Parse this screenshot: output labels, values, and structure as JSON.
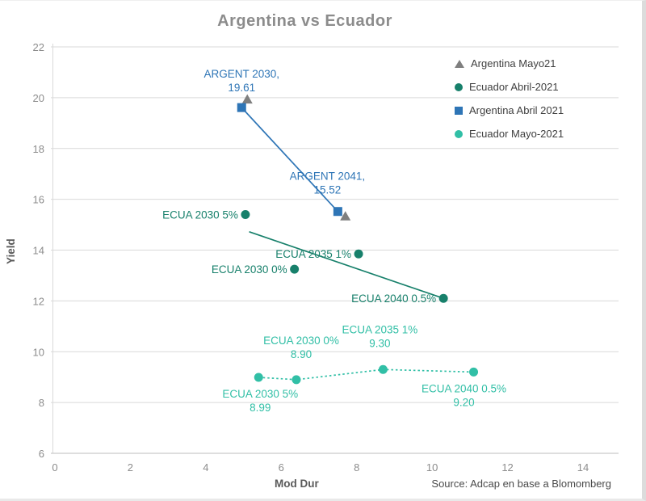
{
  "title": "Argentina vs Ecuador",
  "axes": {
    "y_label": "Yield",
    "x_label": "Mod Dur",
    "source": "Source: Adcap en base a Blomomberg"
  },
  "legend": {
    "position": "top-right",
    "items": [
      {
        "label": "Argentina Mayo21",
        "marker": "triangle",
        "color": "#7f7f7f"
      },
      {
        "label": "Ecuador Abril-2021",
        "marker": "circle",
        "color": "#17806b"
      },
      {
        "label": "Argentina Abril 2021",
        "marker": "square",
        "color": "#2e75b6"
      },
      {
        "label": "Ecuador Mayo-2021",
        "marker": "circle",
        "color": "#31bfa6"
      }
    ]
  },
  "colors": {
    "grid": "#d9d9d9",
    "axis": "#c9c9c9",
    "ticks": "#8c8c8c",
    "title": "#8c8c8c",
    "legend_text": "#404040",
    "source_text": "#4a4a4a"
  },
  "chart_data": {
    "type": "scatter",
    "title": "Argentina vs Ecuador",
    "xlabel": "Mod Dur",
    "ylabel": "Yield",
    "xlim": [
      0,
      14
    ],
    "ylim": [
      6,
      22
    ],
    "x_ticks": [
      0,
      2,
      4,
      6,
      8,
      10,
      12,
      14
    ],
    "y_ticks": [
      6,
      8,
      10,
      12,
      14,
      16,
      18,
      20,
      22
    ],
    "grid": "horizontal",
    "legend_position": "top-right",
    "series": [
      {
        "name": "Argentina Mayo21",
        "marker": "triangle",
        "color": "#7f7f7f",
        "line": null,
        "points": [
          {
            "x": 5.1,
            "y": 19.93
          },
          {
            "x": 7.7,
            "y": 15.33
          }
        ]
      },
      {
        "name": "Ecuador Abril-2021",
        "marker": "circle",
        "color": "#17806b",
        "line": {
          "type": "trend",
          "style": "solid",
          "from": [
            5.15,
            14.72
          ],
          "to": [
            10.3,
            12.1
          ]
        },
        "points": [
          {
            "x": 5.05,
            "y": 15.4,
            "label": {
              "lines": [
                "ECUA 2030 5%"
              ],
              "anchor": "end",
              "dx": -9,
              "dy": 5
            }
          },
          {
            "x": 6.35,
            "y": 13.25,
            "label": {
              "lines": [
                "ECUA 2030 0%"
              ],
              "anchor": "end",
              "dx": -9,
              "dy": 5
            }
          },
          {
            "x": 8.05,
            "y": 13.85,
            "label": {
              "lines": [
                "ECUA 2035 1%"
              ],
              "anchor": "end",
              "dx": -9,
              "dy": 5
            }
          },
          {
            "x": 10.3,
            "y": 12.1,
            "label": {
              "lines": [
                "ECUA 2040 0.5%"
              ],
              "anchor": "end",
              "dx": -9,
              "dy": 5
            }
          }
        ]
      },
      {
        "name": "Argentina Abril 2021",
        "marker": "square",
        "color": "#2e75b6",
        "line": {
          "type": "connect",
          "style": "solid"
        },
        "points": [
          {
            "x": 4.95,
            "y": 19.61,
            "label": {
              "lines": [
                "ARGENT 2030,",
                "19.61"
              ],
              "anchor": "middle",
              "dx": 0,
              "dy": -37
            }
          },
          {
            "x": 7.5,
            "y": 15.52,
            "label": {
              "lines": [
                "ARGENT 2041,",
                "15.52"
              ],
              "anchor": "middle",
              "dx": -13,
              "dy": -39
            }
          }
        ]
      },
      {
        "name": "Ecuador Mayo-2021",
        "marker": "circle",
        "color": "#31bfa6",
        "line": {
          "type": "connect",
          "style": "dotted"
        },
        "points": [
          {
            "x": 5.4,
            "y": 8.99,
            "label": {
              "lines": [
                "ECUA 2030 5%",
                "8.99"
              ],
              "anchor": "middle",
              "dx": 2,
              "dy": 25
            }
          },
          {
            "x": 6.4,
            "y": 8.9,
            "label": {
              "lines": [
                "ECUA 2030 0%",
                "8.90"
              ],
              "anchor": "middle",
              "dx": 6,
              "dy": -44
            }
          },
          {
            "x": 8.7,
            "y": 9.3,
            "label": {
              "lines": [
                "ECUA 2035 1%",
                "9.30"
              ],
              "anchor": "middle",
              "dx": -4,
              "dy": -45
            }
          },
          {
            "x": 11.1,
            "y": 9.2,
            "label": {
              "lines": [
                "ECUA 2040 0.5%",
                "9.20"
              ],
              "anchor": "middle",
              "dx": -12,
              "dy": 25
            }
          }
        ]
      }
    ]
  }
}
